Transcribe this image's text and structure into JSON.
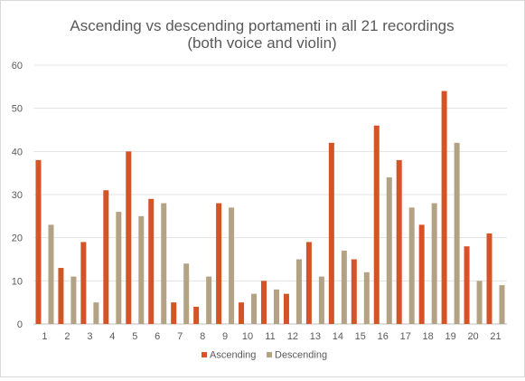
{
  "chart_data": {
    "type": "bar",
    "title": "Ascending vs descending portamenti in all 21 recordings",
    "subtitle": "(both voice and violin)",
    "xlabel": "",
    "ylabel": "",
    "ylim": [
      0,
      60
    ],
    "yticks": [
      0,
      10,
      20,
      30,
      40,
      50,
      60
    ],
    "grid": true,
    "legend_position": "bottom",
    "categories": [
      "1",
      "2",
      "3",
      "4",
      "5",
      "6",
      "7",
      "8",
      "9",
      "10",
      "11",
      "12",
      "13",
      "14",
      "15",
      "16",
      "17",
      "18",
      "19",
      "20",
      "21"
    ],
    "series": [
      {
        "name": "Ascending",
        "color": "#d45427",
        "values": [
          38,
          13,
          19,
          31,
          40,
          29,
          5,
          4,
          28,
          5,
          10,
          7,
          19,
          42,
          15,
          46,
          38,
          23,
          54,
          18,
          21
        ]
      },
      {
        "name": "Descending",
        "color": "#b4a285",
        "values": [
          23,
          11,
          5,
          26,
          25,
          28,
          14,
          11,
          27,
          7,
          8,
          15,
          11,
          17,
          12,
          34,
          27,
          28,
          42,
          10,
          9
        ]
      }
    ]
  }
}
